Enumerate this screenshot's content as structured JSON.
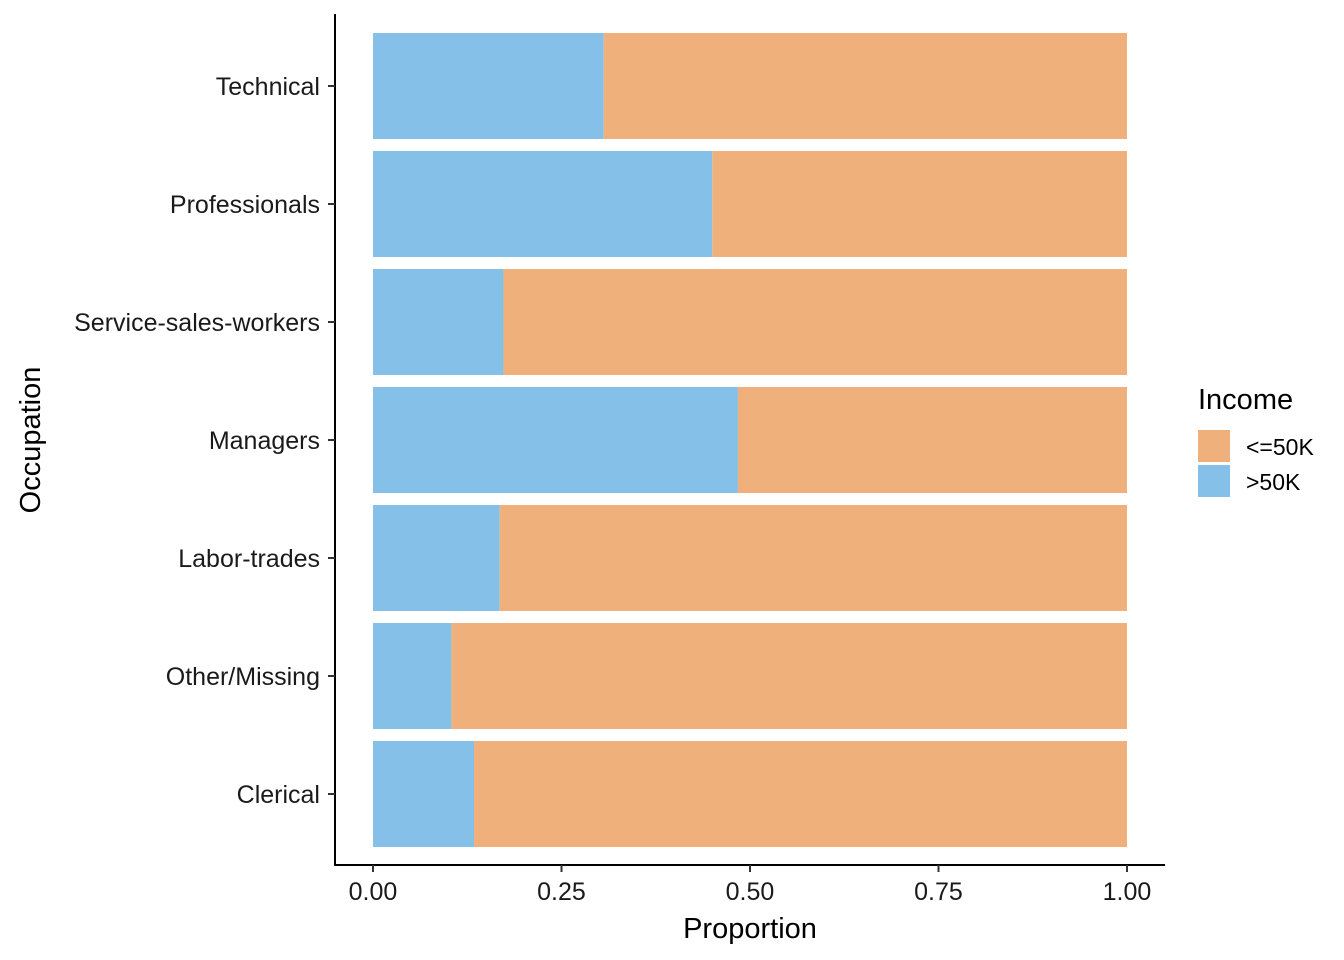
{
  "chart_data": {
    "type": "bar",
    "orientation": "horizontal",
    "stacked": true,
    "xlabel": "Proportion",
    "ylabel": "Occupation",
    "xlim": [
      0,
      1
    ],
    "x_ticks": [
      0,
      0.25,
      0.5,
      0.75,
      1
    ],
    "x_tick_labels": [
      "0.00",
      "0.25",
      "0.50",
      "0.75",
      "1.00"
    ],
    "categories": [
      "Technical",
      "Professionals",
      "Service-sales-workers",
      "Managers",
      "Labor-trades",
      "Other/Missing",
      "Clerical"
    ],
    "series": [
      {
        "name": ">50K",
        "color": "#85C0E8",
        "values": [
          0.306,
          0.45,
          0.173,
          0.484,
          0.168,
          0.104,
          0.134
        ]
      },
      {
        "name": "<=50K",
        "color": "#F0B07C",
        "values": [
          0.694,
          0.55,
          0.827,
          0.516,
          0.832,
          0.896,
          0.866
        ]
      }
    ],
    "legend": {
      "title": "Income",
      "placement": "right",
      "items": [
        {
          "label": "<=50K",
          "color": "#F0B07C"
        },
        {
          "label": ">50K",
          "color": "#85C0E8"
        }
      ]
    },
    "grid": false
  }
}
